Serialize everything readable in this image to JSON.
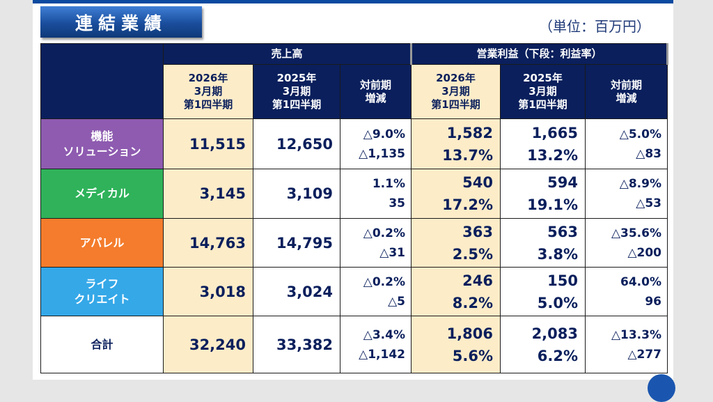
{
  "title": "連結業績",
  "unit": "（単位：百万円）",
  "header": {
    "sales": "売上高",
    "op": "営業利益（下段：利益率）",
    "cols": [
      [
        "2026年",
        "3月期",
        "第1四半期"
      ],
      [
        "2025年",
        "3月期",
        "第1四半期"
      ],
      [
        "対前期",
        "増減"
      ]
    ]
  },
  "rows": [
    {
      "label": [
        "機能",
        "ソリューション"
      ],
      "color": "#8e5bb0",
      "s26": "11,515",
      "s25": "12,650",
      "sd": [
        "△9.0%",
        "△1,135"
      ],
      "o26": [
        "1,582",
        "13.7%"
      ],
      "o25": [
        "1,665",
        "13.2%"
      ],
      "od": [
        "△5.0%",
        "△83"
      ]
    },
    {
      "label": [
        "メディカル"
      ],
      "color": "#2fb25a",
      "s26": "3,145",
      "s25": "3,109",
      "sd": [
        "1.1%",
        "35"
      ],
      "o26": [
        "540",
        "17.2%"
      ],
      "o25": [
        "594",
        "19.1%"
      ],
      "od": [
        "△8.9%",
        "△53"
      ]
    },
    {
      "label": [
        "アパレル"
      ],
      "color": "#f47c2c",
      "s26": "14,763",
      "s25": "14,795",
      "sd": [
        "△0.2%",
        "△31"
      ],
      "o26": [
        "363",
        "2.5%"
      ],
      "o25": [
        "563",
        "3.8%"
      ],
      "od": [
        "△35.6%",
        "△200"
      ]
    },
    {
      "label": [
        "ライフ",
        "クリエイト"
      ],
      "color": "#35a8e8",
      "s26": "3,018",
      "s25": "3,024",
      "sd": [
        "△0.2%",
        "△5"
      ],
      "o26": [
        "246",
        "8.2%"
      ],
      "o25": [
        "150",
        "5.0%"
      ],
      "od": [
        "64.0%",
        "96"
      ]
    },
    {
      "label": [
        "合計"
      ],
      "color": "#ffffff",
      "s26": "32,240",
      "s25": "33,382",
      "sd": [
        "△3.4%",
        "△1,142"
      ],
      "o26": [
        "1,806",
        "5.6%"
      ],
      "o25": [
        "2,083",
        "6.2%"
      ],
      "od": [
        "△13.3%",
        "△277"
      ]
    }
  ]
}
